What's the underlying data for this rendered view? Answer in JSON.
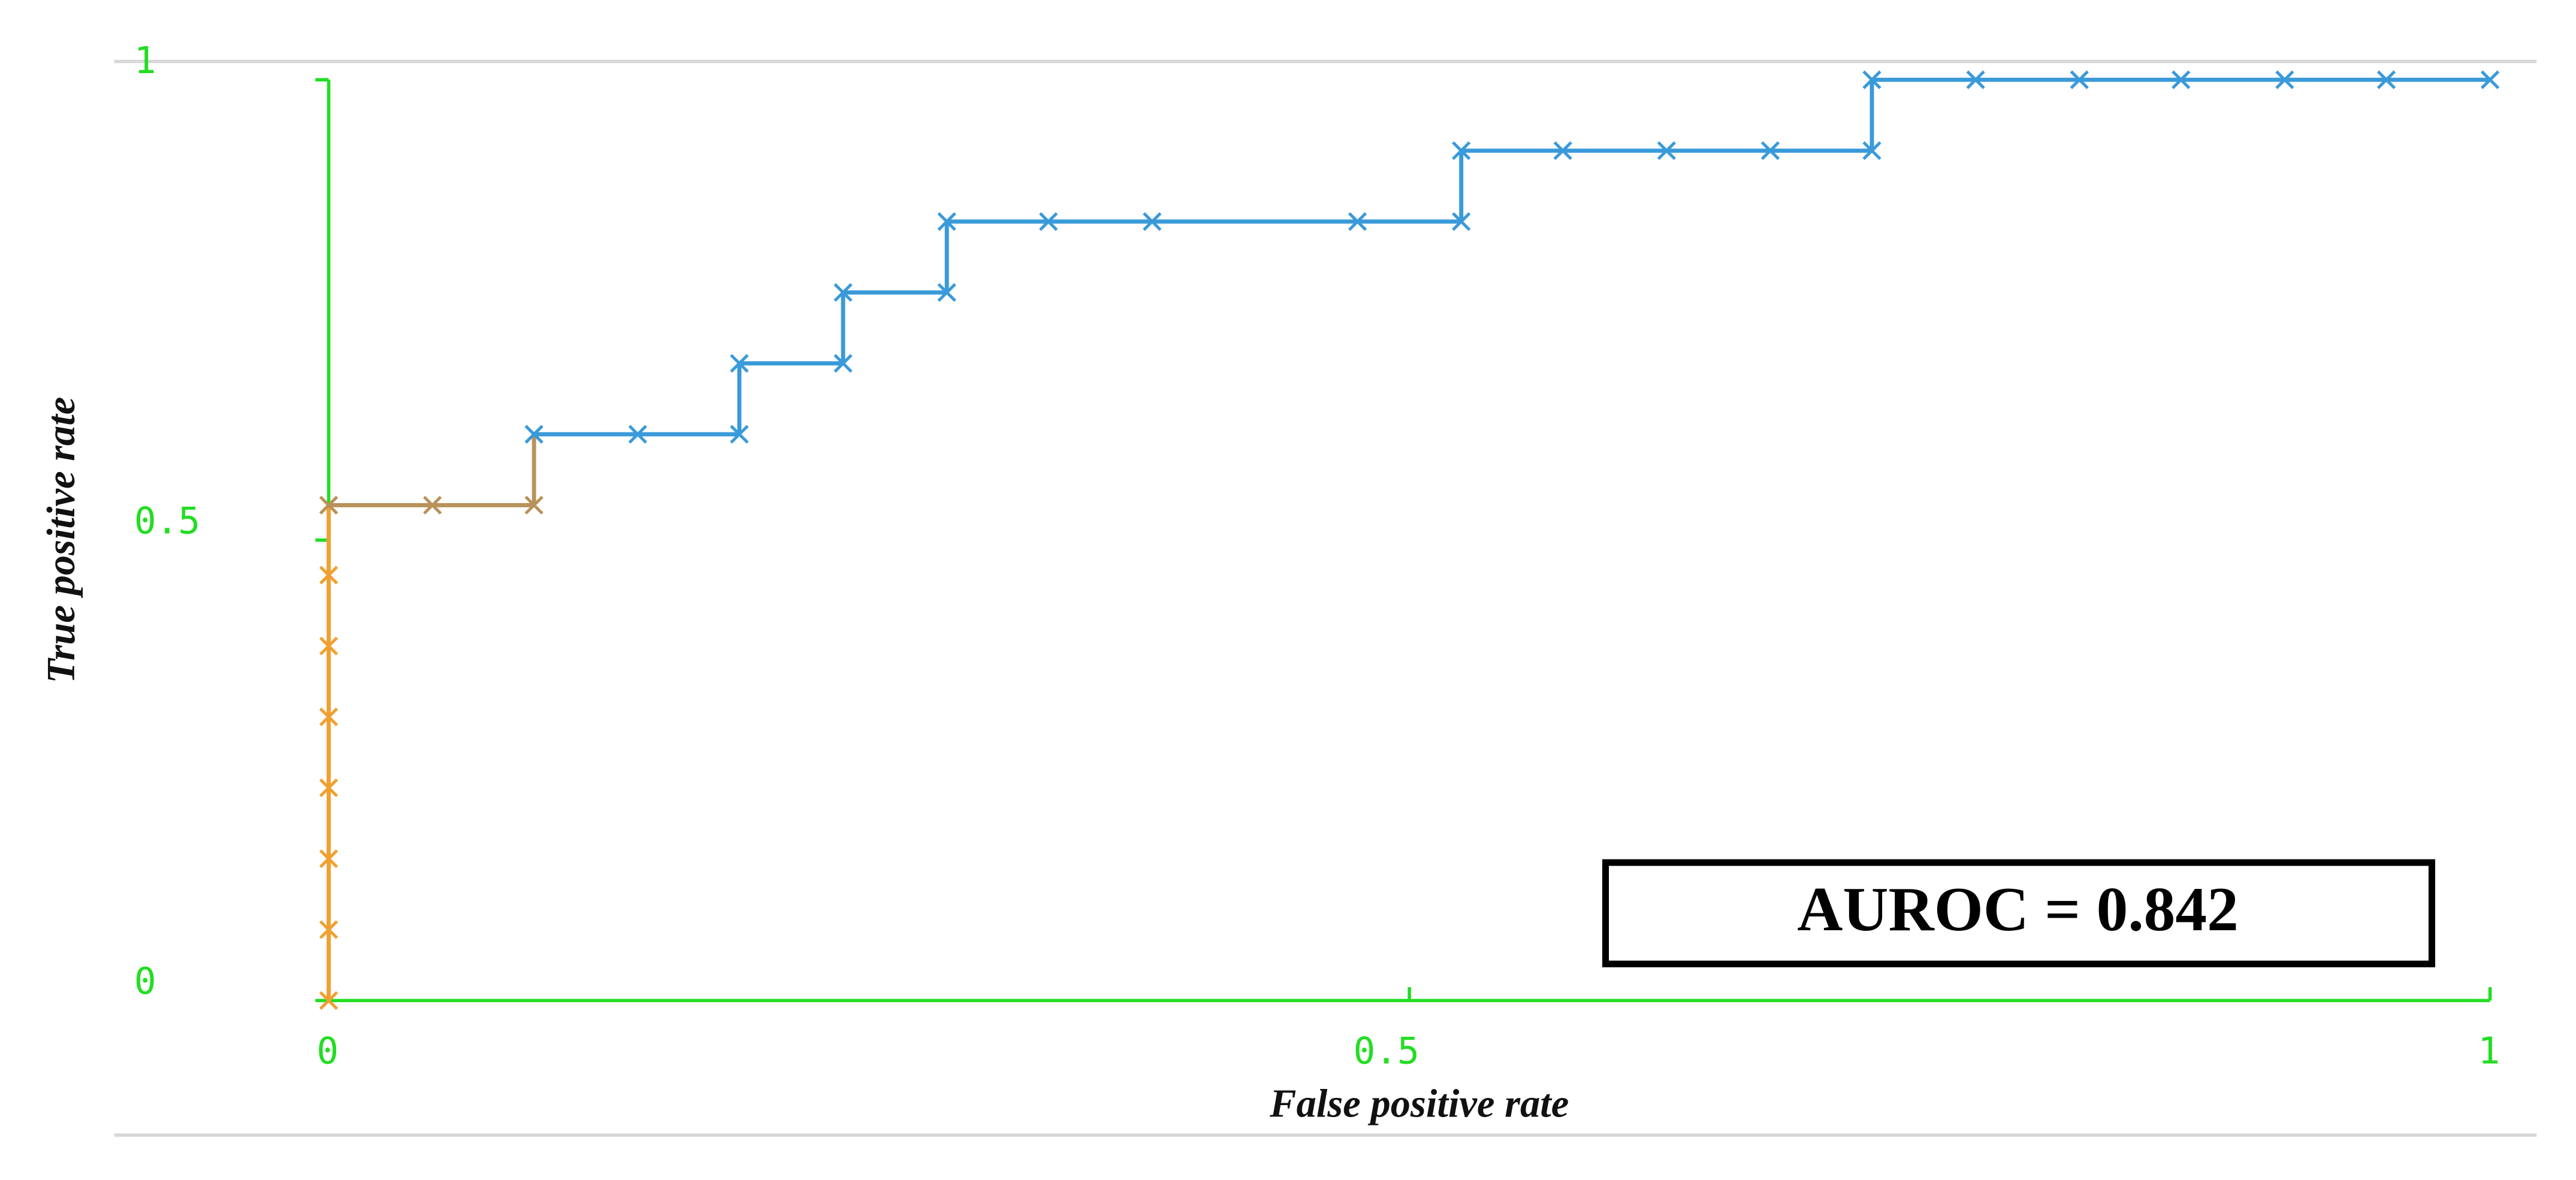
{
  "chart_data": {
    "type": "line",
    "xlabel": "False positive rate",
    "ylabel": "True positive rate",
    "annotation": "AUROC = 0.842",
    "xlim": [
      0,
      1
    ],
    "ylim": [
      0,
      1
    ],
    "xticks": [
      0,
      0.5,
      1
    ],
    "yticks": [
      0,
      0.5,
      1
    ],
    "axis_color": "#22dd22",
    "series": [
      {
        "color": "#f0a030",
        "x": [
          0,
          0,
          0,
          0,
          0,
          0,
          0,
          0
        ],
        "values": [
          0,
          0.077,
          0.154,
          0.231,
          0.308,
          0.385,
          0.462,
          0.538
        ]
      },
      {
        "color": "#b8925a",
        "x": [
          0,
          0.048,
          0.095,
          0.095
        ],
        "values": [
          0.538,
          0.538,
          0.538,
          0.615
        ]
      },
      {
        "color": "#3a9ad9",
        "x": [
          0.095,
          0.143,
          0.19,
          0.19,
          0.238,
          0.238,
          0.286,
          0.286,
          0.333,
          0.381,
          0.476,
          0.524,
          0.524,
          0.571,
          0.619,
          0.667,
          0.714,
          0.714,
          0.762,
          0.81,
          0.857,
          0.905,
          0.952,
          1
        ],
        "values": [
          0.615,
          0.615,
          0.615,
          0.692,
          0.692,
          0.769,
          0.769,
          0.846,
          0.846,
          0.846,
          0.846,
          0.846,
          0.923,
          0.923,
          0.923,
          0.923,
          0.923,
          1,
          1,
          1,
          1,
          1,
          1,
          1
        ]
      }
    ]
  }
}
